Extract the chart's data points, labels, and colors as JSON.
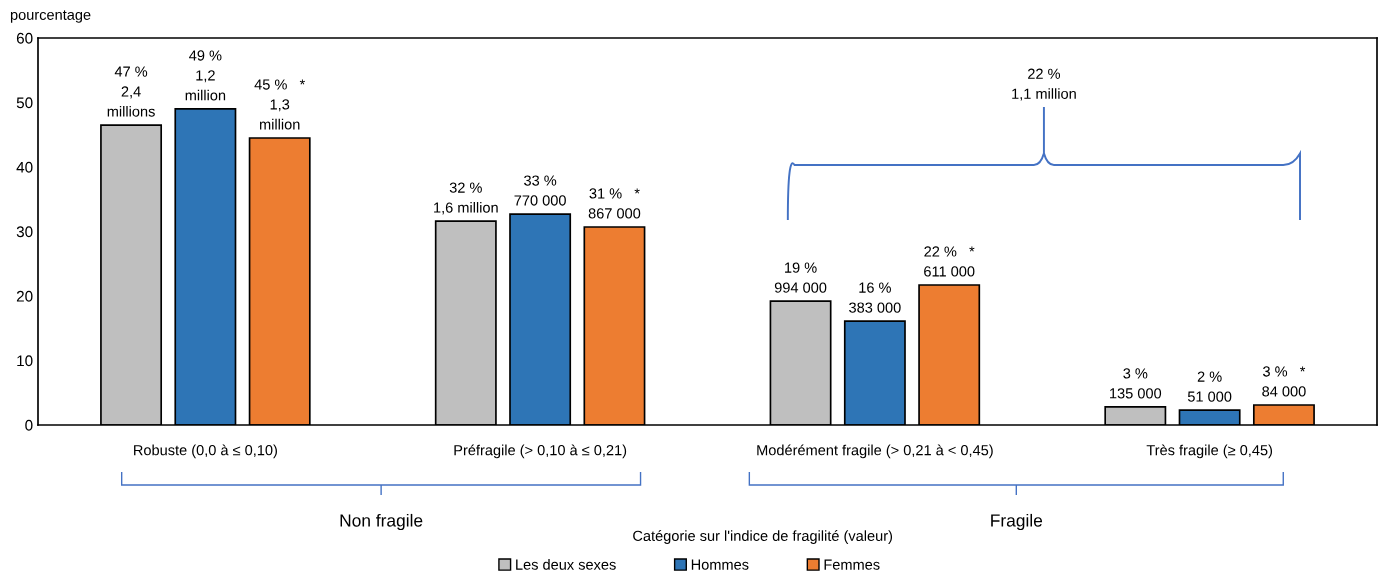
{
  "chart_data": {
    "type": "bar",
    "ylabel": "pourcentage",
    "xlabel": "Catégorie sur l'indice de fragilité (valeur)",
    "categories": [
      "Robuste (0,0 à ≤ 0,10)",
      "Préfragile (> 0,10 à ≤ 0,21)",
      "Modérément fragile (> 0,21 à < 0,45)",
      "Très fragile (≥ 0,45)"
    ],
    "series": [
      {
        "name": "Les deux sexes",
        "color": "#bfbfbf",
        "values": [
          46.5,
          31.6,
          19.2,
          2.8
        ],
        "value_labels": [
          "47 %\n2,4\nmillions",
          "32 %\n1,6 million",
          "19 %\n994 000",
          "3 %\n135 000"
        ]
      },
      {
        "name": "Hommes",
        "color": "#2e75b6",
        "values": [
          49.0,
          32.7,
          16.1,
          2.3
        ],
        "value_labels": [
          "49 %\n1,2\nmillion",
          "33 %\n770 000",
          "16 %\n383 000",
          "2 %\n51 000"
        ]
      },
      {
        "name": "Femmes",
        "color": "#ed7d31",
        "values": [
          44.5,
          30.7,
          21.7,
          3.1
        ],
        "value_labels": [
          "45 %   *\n1,3\nmillion",
          "31 %   *\n867 000",
          "22 %   *\n611 000",
          "3 %   *\n84 000"
        ]
      }
    ],
    "ylim": [
      0,
      60
    ],
    "yticks": [
      0,
      10,
      20,
      30,
      40,
      50,
      60
    ],
    "grid": false,
    "legend": "bottom",
    "annotations": [
      "22 %\n1,1 million",
      "Non fragile",
      "Fragile"
    ]
  }
}
